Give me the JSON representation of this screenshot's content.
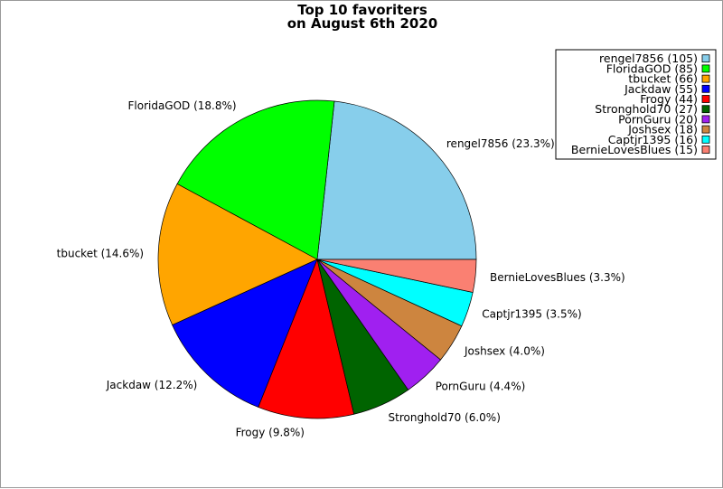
{
  "chart_data": {
    "type": "pie",
    "title": [
      "Top 10 favoriters",
      "on August 6th 2020"
    ],
    "legend_position": "top-right",
    "slices": [
      {
        "name": "rengel7856",
        "value": 105,
        "percent": "23.3%",
        "color": "#87CEEB",
        "legend": "rengel7856 (105)",
        "label": "rengel7856 (23.3%)"
      },
      {
        "name": "FloridaGOD",
        "value": 85,
        "percent": "18.8%",
        "color": "#00FF00",
        "legend": "FloridaGOD (85)",
        "label": "FloridaGOD (18.8%)"
      },
      {
        "name": "tbucket",
        "value": 66,
        "percent": "14.6%",
        "color": "#FFA500",
        "legend": "tbucket (66)",
        "label": "tbucket (14.6%)"
      },
      {
        "name": "Jackdaw",
        "value": 55,
        "percent": "12.2%",
        "color": "#0000FF",
        "legend": "Jackdaw (55)",
        "label": "Jackdaw (12.2%)"
      },
      {
        "name": "Frogy",
        "value": 44,
        "percent": "9.8%",
        "color": "#FF0000",
        "legend": "Frogy (44)",
        "label": "Frogy (9.8%)"
      },
      {
        "name": "Stronghold70",
        "value": 27,
        "percent": "6.0%",
        "color": "#006400",
        "legend": "Stronghold70 (27)",
        "label": "Stronghold70 (6.0%)"
      },
      {
        "name": "PornGuru",
        "value": 20,
        "percent": "4.4%",
        "color": "#A020F0",
        "legend": "PornGuru (20)",
        "label": "PornGuru (4.4%)"
      },
      {
        "name": "Joshsex",
        "value": 18,
        "percent": "4.0%",
        "color": "#CD853F",
        "legend": "Joshsex (18)",
        "label": "Joshsex (4.0%)"
      },
      {
        "name": "Captjr1395",
        "value": 16,
        "percent": "3.5%",
        "color": "#00FFFF",
        "legend": "Captjr1395 (16)",
        "label": "Captjr1395 (3.5%)"
      },
      {
        "name": "BernieLovesBlues",
        "value": 15,
        "percent": "3.3%",
        "color": "#FA8072",
        "legend": "BernieLovesBlues (15)",
        "label": "BernieLovesBlues (3.3%)"
      }
    ]
  }
}
